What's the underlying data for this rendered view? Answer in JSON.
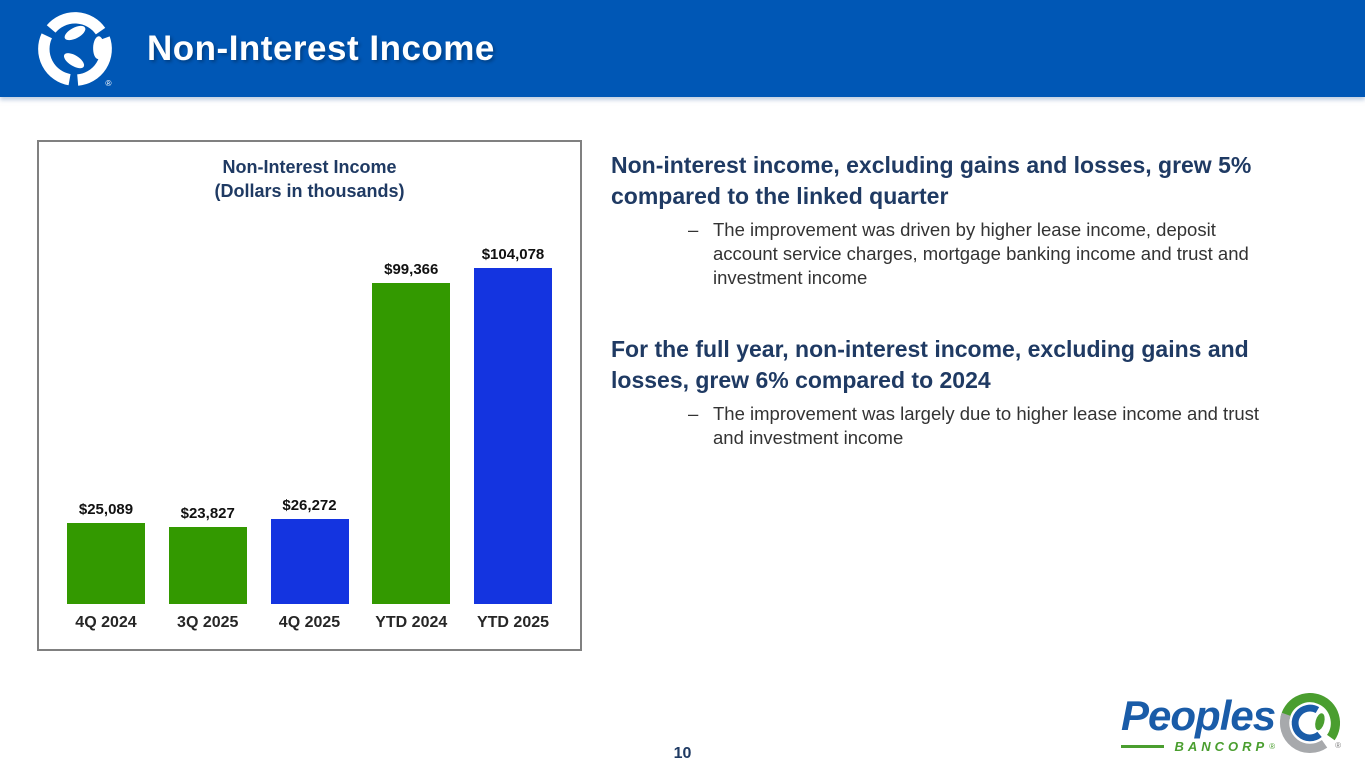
{
  "header": {
    "title": "Non-Interest Income"
  },
  "chart_data": {
    "type": "bar",
    "title": "Non-Interest Income",
    "subtitle": "(Dollars in thousands)",
    "categories": [
      "4Q 2024",
      "3Q 2025",
      "4Q 2025",
      "YTD 2024",
      "YTD 2025"
    ],
    "values": [
      25089,
      23827,
      26272,
      99366,
      104078
    ],
    "value_labels": [
      "$25,089",
      "$23,827",
      "$26,272",
      "$99,366",
      "$104,078"
    ],
    "bar_colors": [
      "#339900",
      "#339900",
      "#1434e0",
      "#339900",
      "#1434e0"
    ],
    "ylim": [
      0,
      104078
    ],
    "grid": false,
    "legend": false
  },
  "content": {
    "bullet_marker": "–",
    "sections": [
      {
        "heading": "Non-interest income, excluding gains and losses, grew 5% compared to the linked quarter",
        "bullets": [
          "The improvement was driven by higher lease income, deposit account service charges, mortgage banking income and trust and investment income"
        ]
      },
      {
        "heading": "For the full year, non-interest income, excluding gains and losses, grew 6% compared to 2024",
        "bullets": [
          "The improvement was largely due to higher lease income and trust and investment income"
        ]
      }
    ]
  },
  "footer": {
    "page_number": "10",
    "brand": {
      "name": "Peoples",
      "subname": "BANCORP",
      "registered": "®"
    }
  },
  "colors": {
    "header_background": "#0057b5",
    "bar_green": "#339900",
    "bar_blue": "#1434e0",
    "heading_navy": "#1f3a63",
    "body_text": "#333333",
    "chart_border": "#808080",
    "logo_blue": "#1a5ca8",
    "logo_green": "#4a9e2f",
    "logo_gray": "#a7a9ac"
  }
}
